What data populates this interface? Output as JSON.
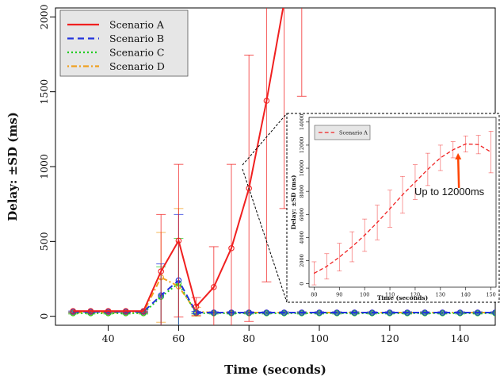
{
  "chart_data": [
    {
      "type": "line",
      "xlabel": "Time (seconds)",
      "ylabel": "Delay: ±SD (ms)",
      "xlim": [
        25,
        150
      ],
      "ylim": [
        -60,
        2060
      ],
      "x_ticks": [
        40,
        60,
        80,
        100,
        120,
        140
      ],
      "y_ticks": [
        0,
        500,
        1000,
        1500,
        2000
      ],
      "legend_position": "top-left",
      "x": [
        30,
        35,
        40,
        45,
        50,
        55,
        60,
        65,
        70,
        75,
        80,
        85,
        90,
        95,
        100,
        105,
        110,
        115,
        120,
        125,
        130,
        135,
        140,
        145,
        150
      ],
      "series": [
        {
          "name": "Scenario A",
          "color": "#f02020",
          "dash": "solid",
          "values": [
            35,
            35,
            35,
            35,
            35,
            300,
            505,
            65,
            195,
            455,
            855,
            1440,
            2100,
            null,
            null,
            null,
            null,
            null,
            null,
            null,
            null,
            null,
            null,
            null,
            null
          ],
          "sd": [
            0,
            0,
            0,
            0,
            0,
            380,
            510,
            60,
            270,
            560,
            890,
            1210,
            1380,
            1430,
            null,
            null,
            null,
            null,
            null,
            null,
            null,
            null,
            null,
            null,
            null
          ],
          "sd_centers": [
            35,
            35,
            35,
            35,
            35,
            300,
            505,
            65,
            195,
            455,
            855,
            1440,
            2100,
            2900,
            null,
            null,
            null,
            null,
            null,
            null,
            null,
            null,
            null,
            null,
            null
          ]
        },
        {
          "name": "Scenario B",
          "color": "#2233dd",
          "dash": "dashed",
          "values": [
            30,
            30,
            30,
            30,
            30,
            140,
            240,
            25,
            25,
            25,
            25,
            25,
            25,
            25,
            25,
            25,
            25,
            25,
            25,
            25,
            25,
            25,
            25,
            25,
            25
          ],
          "sd": [
            5,
            5,
            5,
            5,
            5,
            210,
            440,
            8,
            5,
            5,
            5,
            5,
            5,
            5,
            5,
            5,
            5,
            5,
            5,
            5,
            5,
            5,
            5,
            5,
            5
          ]
        },
        {
          "name": "Scenario C",
          "color": "#22cc22",
          "dash": "dotted",
          "values": [
            20,
            20,
            20,
            20,
            20,
            130,
            220,
            20,
            20,
            20,
            20,
            20,
            20,
            20,
            20,
            20,
            20,
            20,
            20,
            20,
            20,
            20,
            20,
            20,
            20
          ],
          "sd": [
            5,
            5,
            5,
            5,
            5,
            200,
            300,
            5,
            5,
            5,
            5,
            5,
            5,
            5,
            5,
            5,
            5,
            5,
            5,
            5,
            5,
            5,
            5,
            5,
            5
          ]
        },
        {
          "name": "Scenario D",
          "color": "#f0a020",
          "dash": "dotdash",
          "values": [
            25,
            25,
            25,
            25,
            25,
            260,
            200,
            30,
            25,
            25,
            25,
            25,
            25,
            25,
            25,
            25,
            25,
            25,
            25,
            25,
            25,
            25,
            25,
            25,
            25
          ],
          "sd": [
            5,
            5,
            5,
            5,
            5,
            300,
            520,
            30,
            5,
            5,
            5,
            5,
            5,
            5,
            5,
            5,
            5,
            5,
            5,
            5,
            5,
            5,
            5,
            5,
            5
          ]
        }
      ]
    },
    {
      "type": "line",
      "inset": true,
      "xlabel": "Time (seconds)",
      "ylabel": "Delay: ±SD (ms)",
      "xlim": [
        78,
        152
      ],
      "ylim": [
        -300,
        14400
      ],
      "x_ticks": [
        80,
        90,
        100,
        110,
        120,
        130,
        140,
        150
      ],
      "y_ticks": [
        0,
        2000,
        4000,
        6000,
        8000,
        10000,
        12000,
        14000
      ],
      "legend_position": "top-left",
      "x": [
        80,
        85,
        90,
        95,
        100,
        105,
        110,
        115,
        120,
        125,
        130,
        135,
        140,
        145,
        150
      ],
      "series": [
        {
          "name": "Scenario A",
          "color": "#f02020",
          "dash": "dashed",
          "values": [
            900,
            1500,
            2300,
            3200,
            4200,
            5300,
            6500,
            7700,
            8800,
            9900,
            10900,
            11600,
            12100,
            12050,
            11400
          ],
          "sd": [
            1000,
            1100,
            1200,
            1300,
            1400,
            1500,
            1600,
            1600,
            1500,
            1400,
            1100,
            700,
            700,
            800,
            1800
          ]
        }
      ],
      "annotations": [
        {
          "text": "Up to 12000ms",
          "arrow_to_x": 137,
          "arrow_to_y": 12000
        }
      ]
    }
  ]
}
